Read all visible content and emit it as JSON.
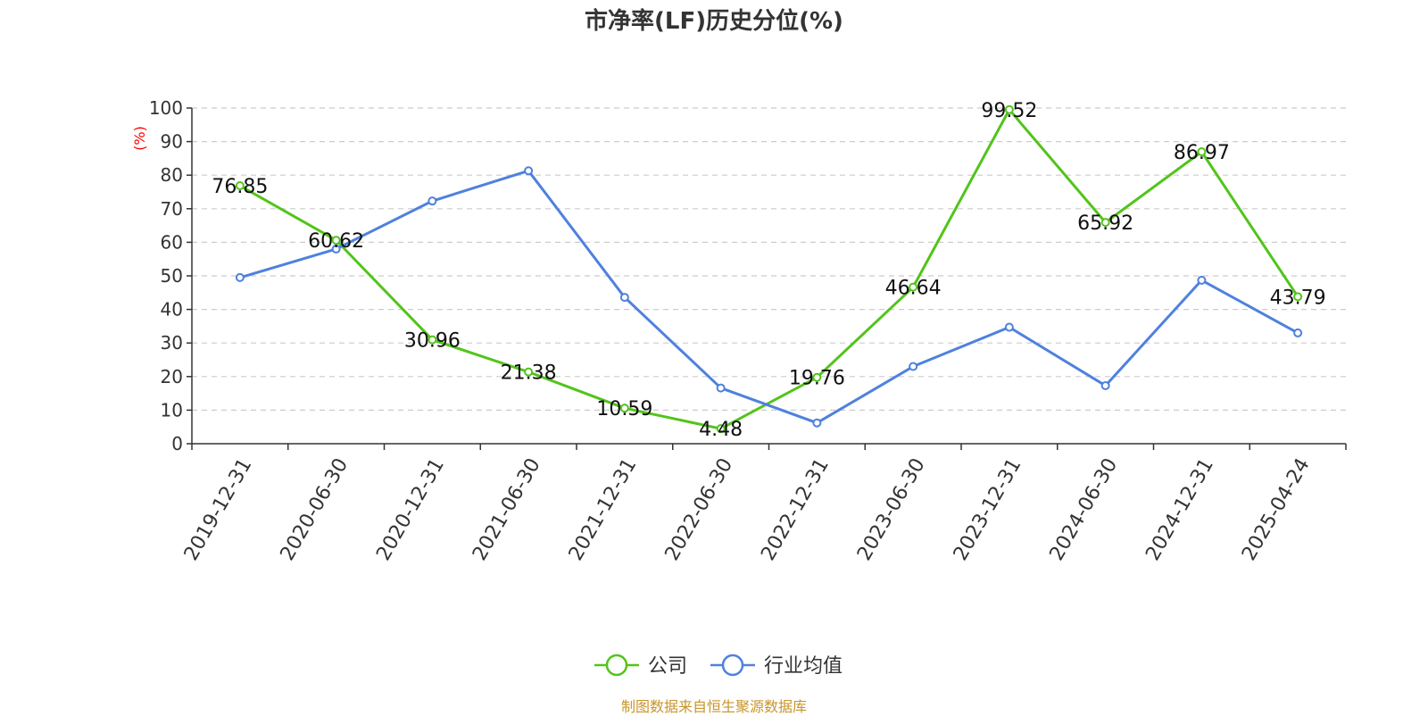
{
  "chart_data": {
    "type": "line",
    "title": "市净率(LF)历史分位(%)",
    "ylabel": "(%)",
    "ylim": [
      0,
      100
    ],
    "yticks": [
      0,
      10,
      20,
      30,
      40,
      50,
      60,
      70,
      80,
      90,
      100
    ],
    "grid": true,
    "legend_position": "bottom",
    "categories": [
      "2019-12-31",
      "2020-06-30",
      "2020-12-31",
      "2021-06-30",
      "2021-12-31",
      "2022-06-30",
      "2022-12-31",
      "2023-06-30",
      "2023-12-31",
      "2024-06-30",
      "2024-12-31",
      "2025-04-24"
    ],
    "series": [
      {
        "name": "公司",
        "color": "#52c41a",
        "show_labels": true,
        "values": [
          76.85,
          60.62,
          30.96,
          21.38,
          10.59,
          4.48,
          19.76,
          46.64,
          99.52,
          65.92,
          86.97,
          43.79
        ]
      },
      {
        "name": "行业均值",
        "color": "#4f81dd",
        "show_labels": false,
        "values": [
          49.5,
          58.0,
          72.3,
          81.3,
          43.6,
          16.6,
          6.2,
          23.0,
          34.7,
          17.3,
          48.7,
          33.0
        ]
      }
    ]
  },
  "colors": {
    "axis": "#333333",
    "grid": "#cccccc",
    "ylabel": "#ff0000",
    "source": "#c8952a"
  },
  "source_text": "制图数据来自恒生聚源数据库"
}
